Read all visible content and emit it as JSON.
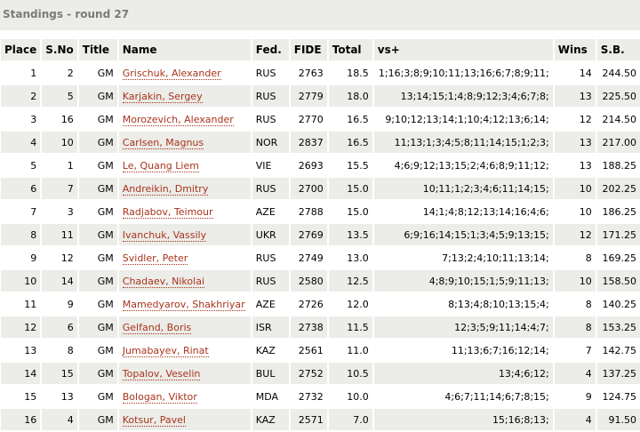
{
  "title": "Standings - round 27",
  "headers": [
    "Place",
    "S.No",
    "Title",
    "Name",
    "Fed.",
    "FIDE",
    "Total",
    "vs+",
    "Wins",
    "S.B."
  ],
  "rows": [
    [
      "1",
      "2",
      "GM",
      "Grischuk, Alexander",
      "RUS",
      "2763",
      "18.5",
      "1;16;3;8;9;10;11;13;16;6;7;8;9;11;",
      "14",
      "244.50"
    ],
    [
      "2",
      "5",
      "GM",
      "Karjakin, Sergey",
      "RUS",
      "2779",
      "18.0",
      "13;14;15;1;4;8;9;12;3;4;6;7;8;",
      "13",
      "225.50"
    ],
    [
      "3",
      "16",
      "GM",
      "Morozevich, Alexander",
      "RUS",
      "2770",
      "16.5",
      "9;10;12;13;14;1;10;4;12;13;6;14;",
      "12",
      "214.50"
    ],
    [
      "4",
      "10",
      "GM",
      "Carlsen, Magnus",
      "NOR",
      "2837",
      "16.5",
      "11;13;1;3;4;5;8;11;14;15;1;2;3;",
      "13",
      "217.00"
    ],
    [
      "5",
      "1",
      "GM",
      "Le, Quang Liem",
      "VIE",
      "2693",
      "15.5",
      "4;6;9;12;13;15;2;4;6;8;9;11;12;",
      "13",
      "188.25"
    ],
    [
      "6",
      "7",
      "GM",
      "Andreikin, Dmitry",
      "RUS",
      "2700",
      "15.0",
      "10;11;1;2;3;4;6;11;14;15;",
      "10",
      "202.25"
    ],
    [
      "7",
      "3",
      "GM",
      "Radjabov, Teimour",
      "AZE",
      "2788",
      "15.0",
      "14;1;4;8;12;13;14;16;4;6;",
      "10",
      "186.25"
    ],
    [
      "8",
      "11",
      "GM",
      "Ivanchuk, Vassily",
      "UKR",
      "2769",
      "13.5",
      "6;9;16;14;15;1;3;4;5;9;13;15;",
      "12",
      "171.25"
    ],
    [
      "9",
      "12",
      "GM",
      "Svidler, Peter",
      "RUS",
      "2749",
      "13.0",
      "7;13;2;4;10;11;13;14;",
      "8",
      "169.25"
    ],
    [
      "10",
      "14",
      "GM",
      "Chadaev, Nikolai",
      "RUS",
      "2580",
      "12.5",
      "4;8;9;10;15;1;5;9;11;13;",
      "10",
      "158.50"
    ],
    [
      "11",
      "9",
      "GM",
      "Mamedyarov, Shakhriyar",
      "AZE",
      "2726",
      "12.0",
      "8;13;4;8;10;13;15;4;",
      "8",
      "140.25"
    ],
    [
      "12",
      "6",
      "GM",
      "Gelfand, Boris",
      "ISR",
      "2738",
      "11.5",
      "12;3;5;9;11;14;4;7;",
      "8",
      "153.25"
    ],
    [
      "13",
      "8",
      "GM",
      "Jumabayev, Rinat",
      "KAZ",
      "2561",
      "11.0",
      "11;13;6;7;16;12;14;",
      "7",
      "142.75"
    ],
    [
      "14",
      "15",
      "GM",
      "Topalov, Veselin",
      "BUL",
      "2752",
      "10.5",
      "13;4;6;12;",
      "4",
      "137.25"
    ],
    [
      "15",
      "13",
      "GM",
      "Bologan, Viktor",
      "MDA",
      "2732",
      "10.0",
      "4;6;7;11;14;6;7;8;15;",
      "9",
      "124.75"
    ],
    [
      "16",
      "4",
      "GM",
      "Kotsur, Pavel",
      "KAZ",
      "2571",
      "7.0",
      "15;16;8;13;",
      "4",
      "91.50"
    ]
  ],
  "colors": {
    "header_bg": "#ecece8",
    "name_link": "#a8341c",
    "title_text": "#7a7a7a"
  }
}
